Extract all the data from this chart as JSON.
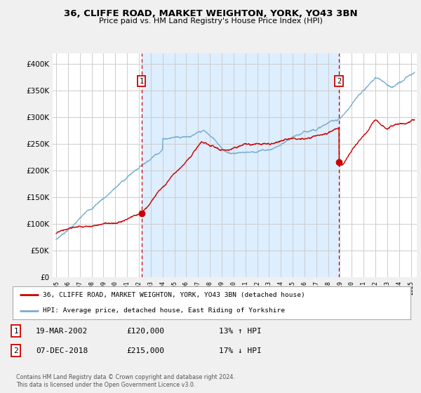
{
  "title": "36, CLIFFE ROAD, MARKET WEIGHTON, YORK, YO43 3BN",
  "subtitle": "Price paid vs. HM Land Registry's House Price Index (HPI)",
  "legend_line1": "36, CLIFFE ROAD, MARKET WEIGHTON, YORK, YO43 3BN (detached house)",
  "legend_line2": "HPI: Average price, detached house, East Riding of Yorkshire",
  "annotation1_date": "19-MAR-2002",
  "annotation1_price": "£120,000",
  "annotation1_hpi": "13% ↑ HPI",
  "annotation2_date": "07-DEC-2018",
  "annotation2_price": "£215,000",
  "annotation2_hpi": "17% ↓ HPI",
  "footnote": "Contains HM Land Registry data © Crown copyright and database right 2024.\nThis data is licensed under the Open Government Licence v3.0.",
  "sale1_x": 2002.21,
  "sale1_y": 120000,
  "sale2_x": 2018.92,
  "sale2_y": 215000,
  "vline1_x": 2002.21,
  "vline2_x": 2018.92,
  "red_color": "#cc0000",
  "blue_color": "#7aadcf",
  "shade_color": "#ddeeff",
  "vline_color": "#cc0000",
  "background_color": "#f0f0f0",
  "plot_bg_color": "#ffffff",
  "grid_color": "#cccccc",
  "ylim": [
    0,
    420000
  ],
  "xlim_start": 1994.7,
  "xlim_end": 2025.5,
  "yticks": [
    0,
    50000,
    100000,
    150000,
    200000,
    250000,
    300000,
    350000,
    400000
  ]
}
